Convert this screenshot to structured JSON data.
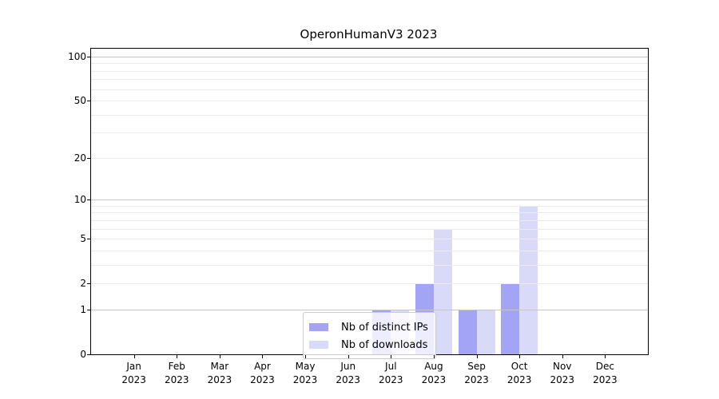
{
  "title": "OperonHumanV3 2023",
  "legend": {
    "items": [
      {
        "label": "Nb of distinct IPs",
        "color": "#a4a4f4"
      },
      {
        "label": "Nb of downloads",
        "color": "#d9d9f8"
      }
    ]
  },
  "chart_data": {
    "type": "bar",
    "title": "OperonHumanV3 2023",
    "categories": [
      "Jan 2023",
      "Feb 2023",
      "Mar 2023",
      "Apr 2023",
      "May 2023",
      "Jun 2023",
      "Jul 2023",
      "Aug 2023",
      "Sep 2023",
      "Oct 2023",
      "Nov 2023",
      "Dec 2023"
    ],
    "series": [
      {
        "name": "Nb of distinct IPs",
        "color": "#a4a4f4",
        "values": [
          0,
          0,
          0,
          0,
          0,
          0,
          1,
          2,
          1,
          2,
          0,
          0
        ]
      },
      {
        "name": "Nb of downloads",
        "color": "#d9d9f8",
        "values": [
          0,
          0,
          0,
          0,
          0,
          0,
          1,
          6,
          1,
          9,
          0,
          0
        ]
      }
    ],
    "xlabel": "",
    "ylabel": "",
    "yticks": [
      0,
      1,
      2,
      5,
      10,
      20,
      50,
      100
    ],
    "y_major_gridlines": [
      1,
      10,
      100
    ],
    "y_minor_gridlines": [
      2,
      3,
      4,
      5,
      6,
      7,
      8,
      9,
      20,
      30,
      40,
      50,
      60,
      70,
      80,
      90
    ],
    "scale": "log1p",
    "ylim": [
      0,
      113
    ],
    "grid": true,
    "grid_above_bars": true,
    "legend_position": "lower center"
  }
}
